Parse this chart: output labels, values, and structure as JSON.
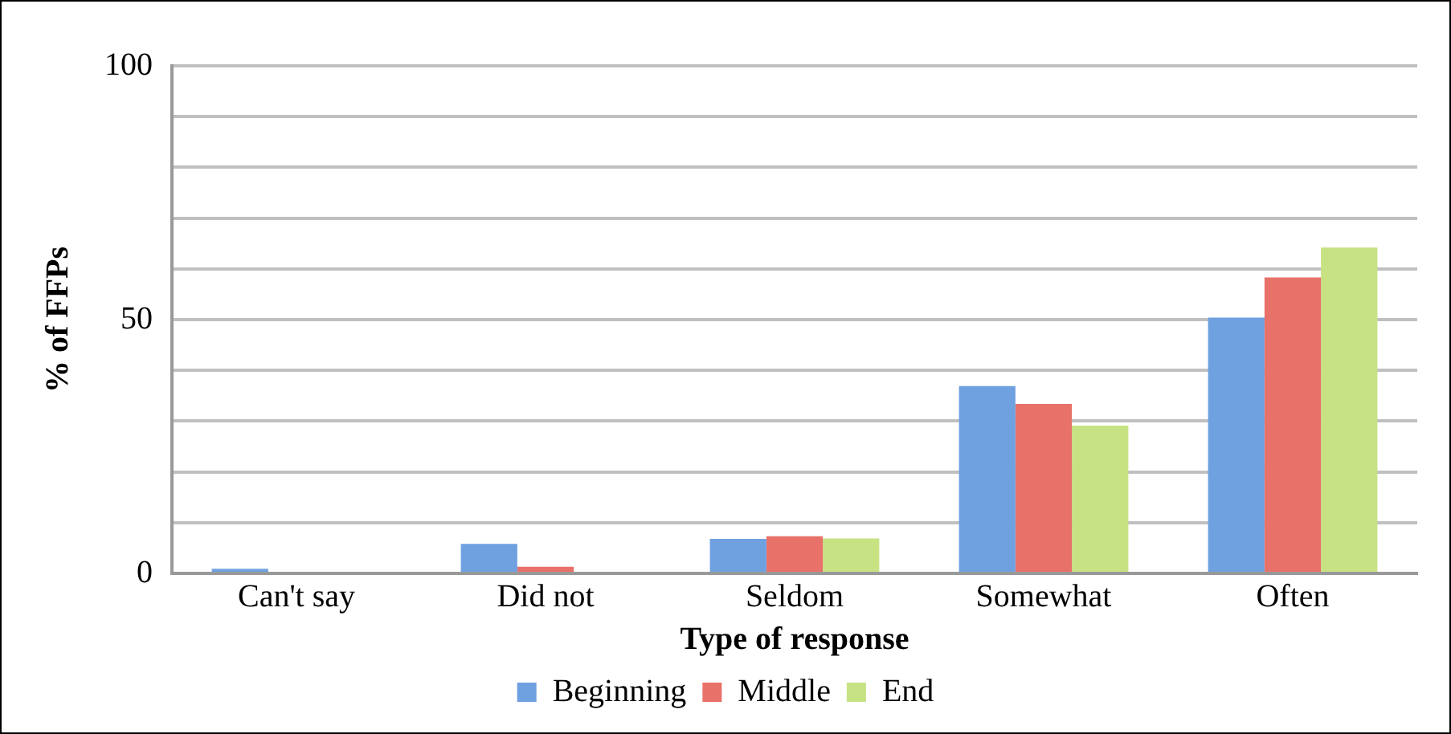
{
  "chart_data": {
    "type": "bar",
    "xlabel": "Type of response",
    "ylabel": "% of FFPs",
    "categories": [
      "Can't say",
      "Did not",
      "Seldom",
      "Somewhat",
      "Often"
    ],
    "series": [
      {
        "name": "Beginning",
        "color": "#6fa0e0",
        "values": [
          0.9,
          5.8,
          6.8,
          36.9,
          50.4
        ]
      },
      {
        "name": "Middle",
        "color": "#e8716a",
        "values": [
          0,
          1.3,
          7.3,
          33.4,
          58.3
        ]
      },
      {
        "name": "End",
        "color": "#c7e283",
        "values": [
          0,
          0,
          6.9,
          29.1,
          64.2
        ]
      }
    ],
    "ylim": [
      0,
      100
    ],
    "yticks": [
      0,
      {
        "value": 10,
        "label": null
      },
      {
        "value": 20,
        "label": null
      },
      {
        "value": 30,
        "label": null
      },
      {
        "value": 40,
        "label": null
      },
      50,
      {
        "value": 60,
        "label": null
      },
      {
        "value": 70,
        "label": null
      },
      {
        "value": 80,
        "label": null
      },
      {
        "value": 90,
        "label": null
      },
      100
    ],
    "grid": "y",
    "legend": "bottom"
  }
}
